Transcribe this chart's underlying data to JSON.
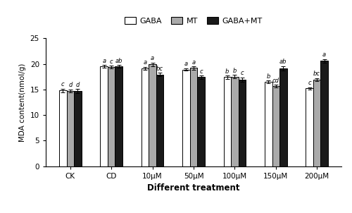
{
  "categories": [
    "CK",
    "CD",
    "10μM",
    "50μM",
    "100μM",
    "150μM",
    "200μM"
  ],
  "gaba_values": [
    14.8,
    19.5,
    19.1,
    18.9,
    17.4,
    16.5,
    15.2
  ],
  "mt_values": [
    14.7,
    19.4,
    19.9,
    19.2,
    17.5,
    15.7,
    16.9
  ],
  "gabamt_values": [
    14.7,
    19.5,
    17.9,
    17.4,
    16.9,
    19.1,
    20.6
  ],
  "gaba_err": [
    0.35,
    0.25,
    0.3,
    0.25,
    0.3,
    0.25,
    0.25
  ],
  "mt_err": [
    0.3,
    0.25,
    0.35,
    0.3,
    0.35,
    0.25,
    0.3
  ],
  "gabamt_err": [
    0.4,
    0.3,
    0.35,
    0.3,
    0.45,
    0.45,
    0.35
  ],
  "gaba_labels": [
    "c",
    "a",
    "a",
    "a",
    "b",
    "b",
    "c"
  ],
  "mt_labels": [
    "d",
    "c",
    "a",
    "a",
    "b",
    "cd",
    "bc"
  ],
  "gabamt_labels": [
    "d",
    "ab",
    "bc",
    "c",
    "c",
    "ab",
    "a"
  ],
  "bar_colors": [
    "#ffffff",
    "#aaaaaa",
    "#1a1a1a"
  ],
  "bar_edge": "#000000",
  "ylabel": "MDA content(nmol/g)",
  "xlabel": "Different treatment",
  "ylim": [
    0,
    25
  ],
  "yticks": [
    0,
    5,
    10,
    15,
    20,
    25
  ],
  "legend_labels": [
    "GABA",
    "MT",
    "GABA+MT"
  ],
  "bar_width": 0.18,
  "figsize": [
    5.0,
    3.02
  ],
  "dpi": 100
}
